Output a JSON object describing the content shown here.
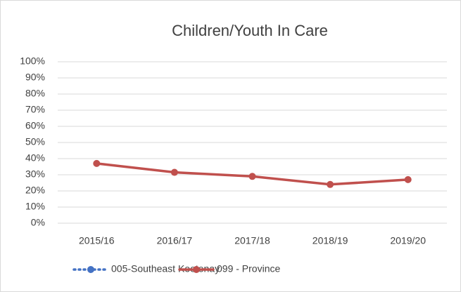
{
  "chart_data": {
    "type": "line",
    "title": "Children/Youth In Care",
    "categories": [
      "2015/16",
      "2016/17",
      "2017/18",
      "2018/19",
      "2019/20"
    ],
    "series": [
      {
        "name": "005-Southeast Kootenay",
        "color": "#4472c4",
        "values": [
          null,
          null,
          null,
          null,
          null
        ]
      },
      {
        "name": "099 - Province",
        "color": "#c0504d",
        "values": [
          37,
          31.5,
          29,
          24,
          27
        ]
      }
    ],
    "ylim": [
      0,
      100
    ],
    "yticks": [
      {
        "value": 0,
        "label": "0%"
      },
      {
        "value": 10,
        "label": "10%"
      },
      {
        "value": 20,
        "label": "20%"
      },
      {
        "value": 30,
        "label": "30%"
      },
      {
        "value": 40,
        "label": "40%"
      },
      {
        "value": 50,
        "label": "50%"
      },
      {
        "value": 60,
        "label": "60%"
      },
      {
        "value": 70,
        "label": "70%"
      },
      {
        "value": 80,
        "label": "80%"
      },
      {
        "value": 90,
        "label": "90%"
      },
      {
        "value": 100,
        "label": "100%"
      }
    ],
    "grid": true,
    "legend": "bottom"
  }
}
